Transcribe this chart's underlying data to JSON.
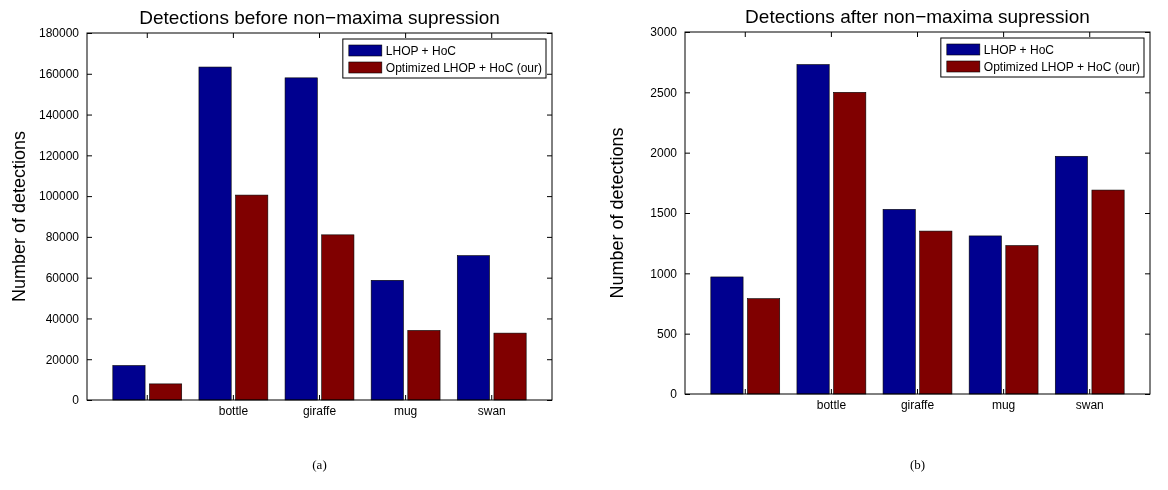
{
  "chart_data": [
    {
      "type": "bar",
      "title": "Detections before non−maxima supression",
      "ylabel": "Number of detections",
      "categories": [
        null,
        "bottle",
        "giraffe",
        "mug",
        "swan"
      ],
      "series": [
        {
          "name": "LHOP + HoC",
          "color": "#00008f",
          "values": [
            16900,
            163300,
            158000,
            58700,
            70800
          ]
        },
        {
          "name": "Optimized LHOP + HoC (our)",
          "color": "#800000",
          "values": [
            7900,
            100500,
            81000,
            34100,
            32800
          ]
        }
      ],
      "ylim": [
        0,
        180000
      ],
      "yticks": [
        0,
        20000,
        40000,
        60000,
        80000,
        100000,
        120000,
        140000,
        160000,
        180000
      ],
      "legend": "top right",
      "annotations": [
        "(a)"
      ]
    },
    {
      "type": "bar",
      "title": "Detections after non−maxima supression",
      "ylabel": "Number of detections",
      "categories": [
        null,
        "bottle",
        "giraffe",
        "mug",
        "swan"
      ],
      "series": [
        {
          "name": "LHOP + HoC",
          "color": "#00008f",
          "values": [
            970,
            2730,
            1530,
            1310,
            1970
          ]
        },
        {
          "name": "Optimized LHOP + HoC (our)",
          "color": "#800000",
          "values": [
            790,
            2500,
            1350,
            1230,
            1690
          ]
        }
      ],
      "ylim": [
        0,
        3000
      ],
      "yticks": [
        0,
        500,
        1000,
        1500,
        2000,
        2500,
        3000
      ],
      "legend": "top right",
      "annotations": [
        "(b)"
      ]
    }
  ]
}
